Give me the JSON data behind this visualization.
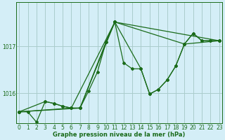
{
  "title": "Graphe pression niveau de la mer (hPa)",
  "bg_color": "#d4eef7",
  "grid_color": "#aacccc",
  "line_color": "#1a6b1a",
  "marker_color": "#1a6b1a",
  "x_ticks": [
    0,
    1,
    2,
    3,
    4,
    5,
    6,
    7,
    8,
    9,
    10,
    11,
    12,
    13,
    14,
    15,
    16,
    17,
    18,
    19,
    20,
    21,
    22,
    23
  ],
  "y_ticks": [
    1016,
    1017
  ],
  "ylim": [
    1015.35,
    1017.95
  ],
  "xlim": [
    -0.3,
    23.3
  ],
  "series1_x": [
    0,
    1,
    2,
    3,
    4,
    5,
    6,
    7,
    8,
    9,
    10,
    11,
    12,
    13,
    14,
    15,
    16,
    17,
    18,
    19,
    20,
    21,
    22,
    23
  ],
  "series1_y": [
    1015.6,
    1015.6,
    1015.38,
    1015.82,
    1015.78,
    1015.72,
    1015.68,
    1015.68,
    1016.05,
    1016.45,
    1017.1,
    1017.52,
    1016.65,
    1016.52,
    1016.52,
    1015.98,
    1016.08,
    1016.28,
    1016.58,
    1017.05,
    1017.28,
    1017.12,
    1017.12,
    1017.12
  ],
  "series2_x": [
    0,
    3,
    4,
    5,
    6,
    7,
    10,
    11,
    14,
    15,
    16,
    17,
    18,
    19,
    20,
    21,
    22,
    23
  ],
  "series2_y": [
    1015.6,
    1015.82,
    1015.78,
    1015.72,
    1015.68,
    1015.68,
    1017.1,
    1017.52,
    1016.52,
    1015.98,
    1016.08,
    1016.28,
    1016.58,
    1017.05,
    1017.28,
    1017.12,
    1017.12,
    1017.12
  ],
  "series3_x": [
    0,
    6,
    11,
    23
  ],
  "series3_y": [
    1015.6,
    1015.68,
    1017.52,
    1017.12
  ],
  "series4_x": [
    0,
    7,
    11,
    19,
    23
  ],
  "series4_y": [
    1015.6,
    1015.68,
    1017.52,
    1017.05,
    1017.12
  ],
  "tick_fontsize": 5.5,
  "label_fontsize": 6.0
}
